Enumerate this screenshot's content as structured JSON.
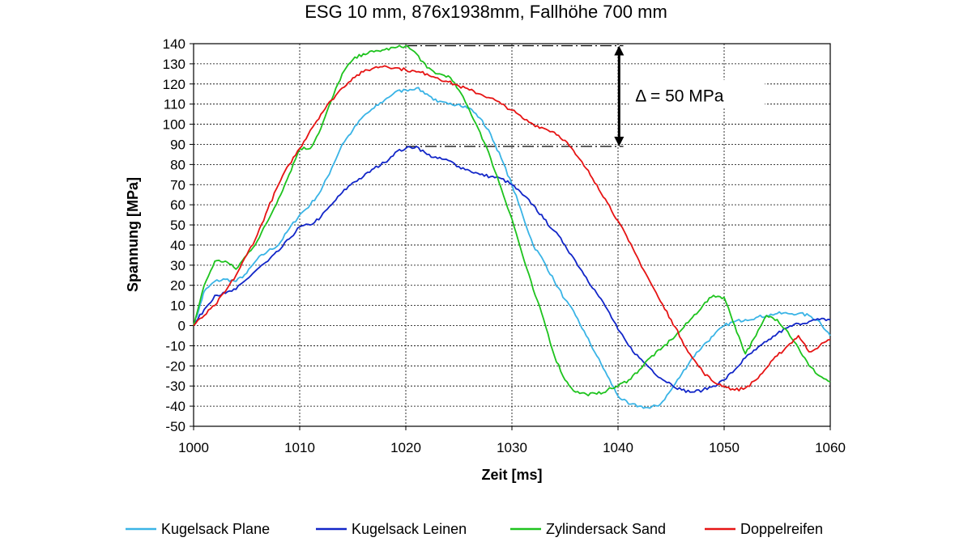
{
  "chart_data": {
    "type": "line",
    "title": "ESG 10 mm, 876x1938mm, Fallhöhe 700 mm",
    "xlabel": "Zeit [ms]",
    "ylabel": "Spannung [MPa]",
    "xlim": [
      1000,
      1060
    ],
    "ylim": [
      -50,
      140
    ],
    "xticks": [
      1000,
      1010,
      1020,
      1030,
      1040,
      1050,
      1060
    ],
    "yticks": [
      -50,
      -40,
      -30,
      -20,
      -10,
      0,
      10,
      20,
      30,
      40,
      50,
      60,
      70,
      80,
      90,
      100,
      110,
      120,
      130,
      140
    ],
    "grid": true,
    "legend_position": "bottom",
    "annotation": {
      "text": "Δ = 50 MPa",
      "y_top": 139,
      "y_bottom": 89,
      "x_from": 1020,
      "x_to": 1040.5
    },
    "series": [
      {
        "name": "Kugelsack Plane",
        "color": "#3ab4e6",
        "x": [
          1000,
          1000.5,
          1001,
          1002,
          1003,
          1004,
          1005,
          1006,
          1007,
          1008,
          1009,
          1010,
          1011,
          1012,
          1013,
          1014,
          1015,
          1016,
          1017,
          1018,
          1019,
          1020,
          1021,
          1022,
          1023,
          1024,
          1025,
          1026,
          1027,
          1028,
          1029,
          1030,
          1031,
          1032,
          1033,
          1034,
          1035,
          1036,
          1037,
          1038,
          1039,
          1040,
          1041,
          1042,
          1043,
          1044,
          1045,
          1046,
          1047,
          1048,
          1049,
          1050,
          1051,
          1052,
          1053,
          1054,
          1055,
          1056,
          1057,
          1058,
          1059,
          1060
        ],
        "values": [
          0,
          8,
          17,
          22,
          23,
          22,
          26,
          33,
          37,
          40,
          48,
          55,
          60,
          67,
          78,
          90,
          97,
          104,
          108,
          112,
          116,
          117,
          118,
          115,
          111,
          110,
          110,
          108,
          103,
          95,
          83,
          70,
          55,
          40,
          32,
          22,
          13,
          5,
          -5,
          -15,
          -25,
          -35,
          -39,
          -40,
          -41,
          -39,
          -32,
          -24,
          -16,
          -10,
          -5,
          0,
          2,
          3,
          4,
          5,
          6,
          6,
          6,
          5,
          2,
          -5
        ]
      },
      {
        "name": "Kugelsack Leinen",
        "color": "#1226c8",
        "x": [
          1000,
          1001,
          1002,
          1003,
          1004,
          1005,
          1006,
          1007,
          1008,
          1009,
          1010,
          1011,
          1012,
          1013,
          1014,
          1015,
          1016,
          1017,
          1018,
          1019,
          1020,
          1021,
          1022,
          1023,
          1024,
          1025,
          1026,
          1027,
          1028,
          1029,
          1030,
          1031,
          1032,
          1033,
          1034,
          1035,
          1036,
          1037,
          1038,
          1039,
          1040,
          1041,
          1042,
          1043,
          1044,
          1045,
          1046,
          1047,
          1048,
          1049,
          1050,
          1051,
          1052,
          1053,
          1054,
          1055,
          1056,
          1057,
          1058,
          1059,
          1060
        ],
        "values": [
          0,
          8,
          15,
          16,
          18,
          23,
          28,
          32,
          37,
          43,
          49,
          50,
          54,
          60,
          66,
          71,
          74,
          78,
          81,
          86,
          88,
          89,
          85,
          83,
          82,
          79,
          77,
          75,
          74,
          73,
          70,
          65,
          60,
          53,
          47,
          40,
          32,
          24,
          16,
          8,
          -2,
          -10,
          -16,
          -21,
          -26,
          -29,
          -32,
          -33,
          -32,
          -30,
          -27,
          -22,
          -16,
          -12,
          -8,
          -4,
          -1,
          1,
          2,
          3,
          3
        ]
      },
      {
        "name": "Zylindersack Sand",
        "color": "#1ec31e",
        "x": [
          1000,
          1001,
          1002,
          1003,
          1004,
          1005,
          1006,
          1007,
          1008,
          1009,
          1010,
          1011,
          1012,
          1013,
          1014,
          1015,
          1016,
          1017,
          1018,
          1019,
          1020,
          1021,
          1022,
          1023,
          1024,
          1025,
          1026,
          1027,
          1028,
          1029,
          1030,
          1031,
          1032,
          1033,
          1034,
          1035,
          1036,
          1037,
          1038,
          1039,
          1040,
          1041,
          1042,
          1043,
          1044,
          1045,
          1046,
          1047,
          1048,
          1049,
          1050,
          1051,
          1052,
          1053,
          1054,
          1055,
          1056,
          1057,
          1058,
          1059,
          1060
        ],
        "values": [
          0,
          20,
          32,
          32,
          28,
          35,
          42,
          52,
          63,
          75,
          88,
          88,
          98,
          112,
          125,
          132,
          135,
          136,
          137,
          138,
          139,
          135,
          128,
          125,
          124,
          117,
          107,
          96,
          83,
          68,
          53,
          35,
          18,
          3,
          -15,
          -27,
          -33,
          -34,
          -34,
          -32,
          -30,
          -27,
          -22,
          -16,
          -12,
          -7,
          -2,
          4,
          10,
          15,
          14,
          0,
          -14,
          -5,
          5,
          3,
          -3,
          -11,
          -20,
          -25,
          -28
        ]
      },
      {
        "name": "Doppelreifen",
        "color": "#e61414",
        "x": [
          1000,
          1001,
          1002,
          1003,
          1004,
          1005,
          1006,
          1007,
          1008,
          1009,
          1010,
          1011,
          1012,
          1013,
          1014,
          1015,
          1016,
          1017,
          1018,
          1019,
          1020,
          1021,
          1022,
          1023,
          1024,
          1025,
          1026,
          1027,
          1028,
          1029,
          1030,
          1031,
          1032,
          1033,
          1034,
          1035,
          1036,
          1037,
          1038,
          1039,
          1040,
          1041,
          1042,
          1043,
          1044,
          1045,
          1046,
          1047,
          1048,
          1049,
          1050,
          1051,
          1052,
          1053,
          1054,
          1055,
          1056,
          1057,
          1058,
          1059,
          1060
        ],
        "values": [
          0,
          5,
          10,
          17,
          25,
          35,
          45,
          58,
          70,
          80,
          88,
          97,
          105,
          112,
          118,
          123,
          126,
          128,
          129,
          128,
          127,
          126,
          125,
          123,
          121,
          119,
          117,
          115,
          113,
          110,
          107,
          103,
          100,
          98,
          96,
          92,
          85,
          78,
          70,
          61,
          52,
          42,
          32,
          22,
          12,
          3,
          -7,
          -16,
          -23,
          -28,
          -30,
          -32,
          -31,
          -27,
          -21,
          -15,
          -10,
          -5,
          -13,
          -10,
          -7
        ]
      }
    ]
  }
}
